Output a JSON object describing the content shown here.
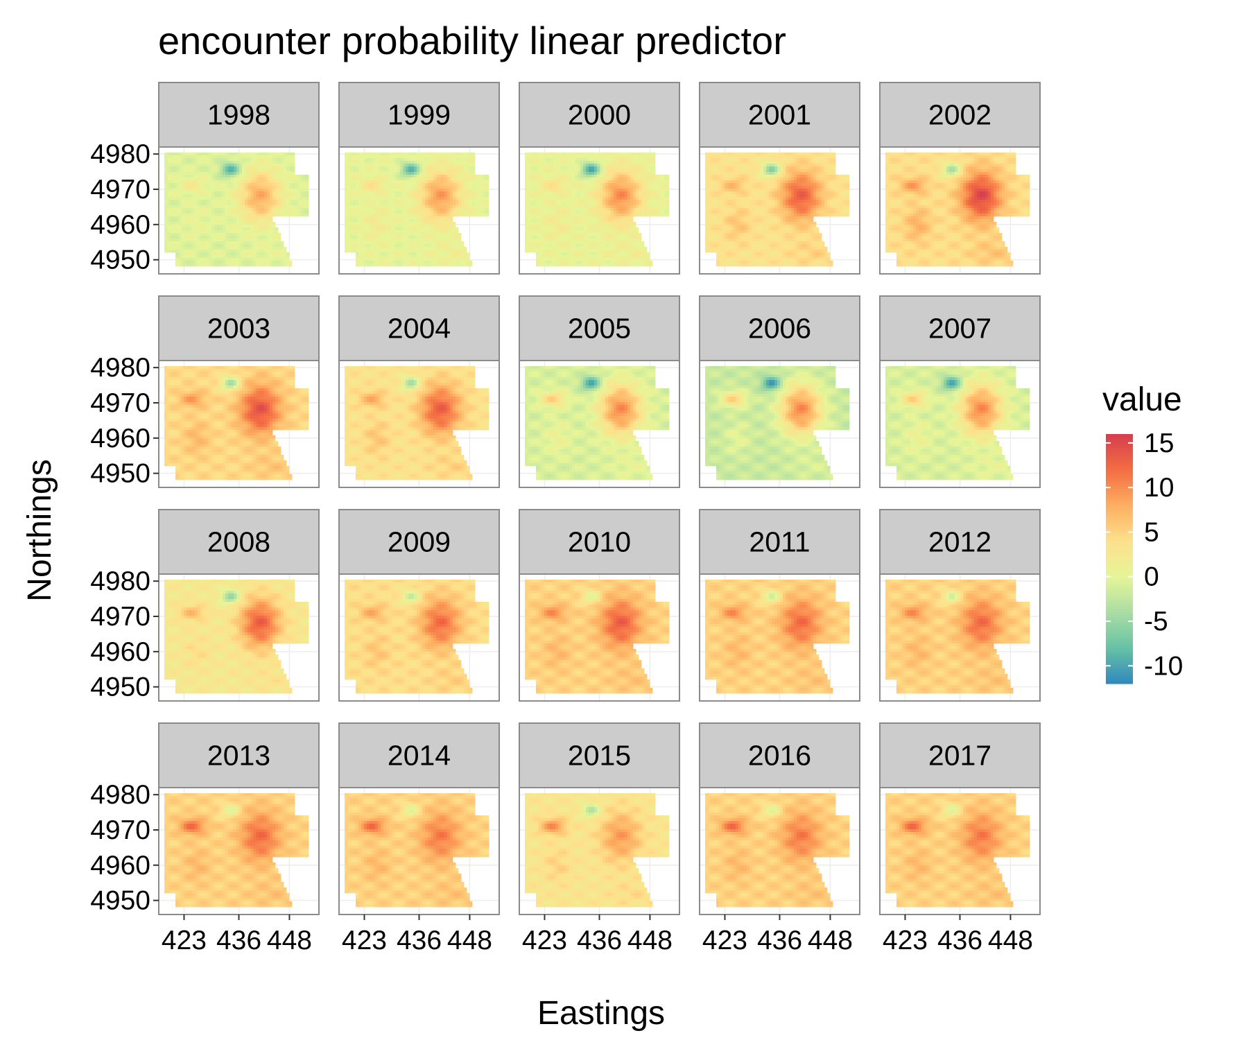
{
  "chart_data": {
    "type": "heatmap",
    "title": "encounter probability linear predictor",
    "xlabel": "Eastings",
    "ylabel": "Northings",
    "facets": [
      "1998",
      "1999",
      "2000",
      "2001",
      "2002",
      "2003",
      "2004",
      "2005",
      "2006",
      "2007",
      "2008",
      "2009",
      "2010",
      "2011",
      "2012",
      "2013",
      "2014",
      "2015",
      "2016",
      "2017"
    ],
    "facet_layout": {
      "rows": 4,
      "cols": 5
    },
    "x_ticks": [
      423,
      436,
      448
    ],
    "x_tick_labels": [
      "423",
      "436",
      "448"
    ],
    "y_ticks": [
      4950,
      4960,
      4970,
      4980
    ],
    "y_tick_labels": [
      "4950",
      "4960",
      "4970",
      "4980"
    ],
    "xlim": [
      417,
      455
    ],
    "ylim": [
      4946,
      4982
    ],
    "grid": true,
    "legend": {
      "title": "value",
      "position": "right",
      "range": [
        -12,
        16
      ],
      "ticks": [
        15,
        10,
        5,
        0,
        -5,
        -10
      ],
      "tick_labels": [
        "15",
        "10",
        "5",
        "0",
        "-5",
        "-10"
      ],
      "palette": [
        "#3288BD",
        "#66C2A5",
        "#ABDDA4",
        "#E6F598",
        "#FEE08B",
        "#FDAE61",
        "#F46D43",
        "#D53E4F"
      ]
    },
    "year_values": [
      {
        "year": "1998",
        "base": -0.5,
        "hot": 8,
        "west": 2.5,
        "blue": -9,
        "sw": 0.5
      },
      {
        "year": "1999",
        "base": 0.2,
        "hot": 9,
        "west": 3.5,
        "blue": -9,
        "sw": 2
      },
      {
        "year": "2000",
        "base": 0.5,
        "hot": 10,
        "west": 3.5,
        "blue": -10,
        "sw": 2
      },
      {
        "year": "2001",
        "base": 3.5,
        "hot": 13,
        "west": 7,
        "blue": -6,
        "sw": 6
      },
      {
        "year": "2002",
        "base": 4,
        "hot": 15,
        "west": 9,
        "blue": -4,
        "sw": 7.5
      },
      {
        "year": "2003",
        "base": 4.5,
        "hot": 14,
        "west": 9,
        "blue": -4,
        "sw": 7
      },
      {
        "year": "2004",
        "base": 3.5,
        "hot": 13,
        "west": 8,
        "blue": -4,
        "sw": 6
      },
      {
        "year": "2005",
        "base": -1,
        "hot": 10,
        "west": 5,
        "blue": -10,
        "sw": 1
      },
      {
        "year": "2006",
        "base": -2,
        "hot": 10,
        "west": 5,
        "blue": -11,
        "sw": 0
      },
      {
        "year": "2007",
        "base": -1,
        "hot": 10,
        "west": 5,
        "blue": -10,
        "sw": 1
      },
      {
        "year": "2008",
        "base": 2.5,
        "hot": 13,
        "west": 7,
        "blue": -5,
        "sw": 4
      },
      {
        "year": "2009",
        "base": 4,
        "hot": 12,
        "west": 8,
        "blue": -2,
        "sw": 6
      },
      {
        "year": "2010",
        "base": 5,
        "hot": 13,
        "west": 10,
        "blue": 0,
        "sw": 7
      },
      {
        "year": "2011",
        "base": 5,
        "hot": 12,
        "west": 10,
        "blue": -1,
        "sw": 7
      },
      {
        "year": "2012",
        "base": 5,
        "hot": 12,
        "west": 10,
        "blue": -1,
        "sw": 7
      },
      {
        "year": "2013",
        "base": 5,
        "hot": 12,
        "west": 12,
        "blue": 0,
        "sw": 7
      },
      {
        "year": "2014",
        "base": 5,
        "hot": 11,
        "west": 12,
        "blue": 0,
        "sw": 7
      },
      {
        "year": "2015",
        "base": 3,
        "hot": 9,
        "west": 10,
        "blue": -3,
        "sw": 5
      },
      {
        "year": "2016",
        "base": 5,
        "hot": 11,
        "west": 12,
        "blue": 0,
        "sw": 7
      },
      {
        "year": "2017",
        "base": 5,
        "hot": 11,
        "west": 12,
        "blue": 0,
        "sw": 7
      }
    ]
  }
}
